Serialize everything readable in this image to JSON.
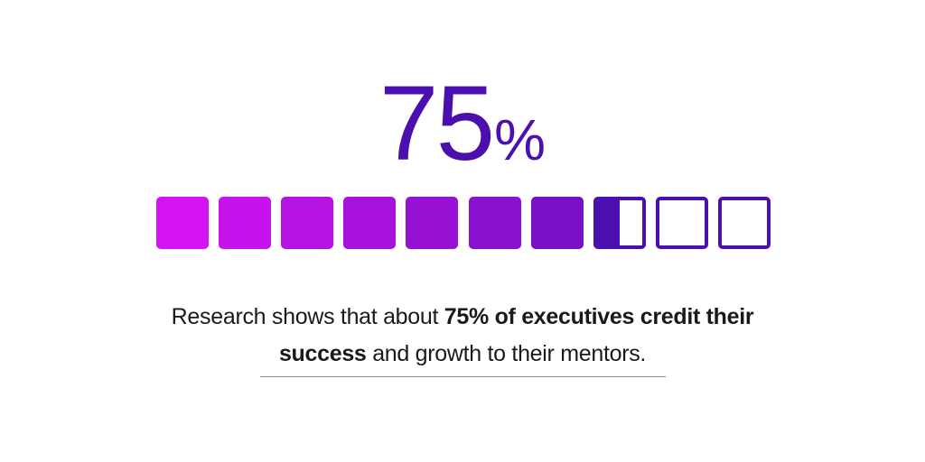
{
  "stat": {
    "number": "75",
    "symbol": "%",
    "value": 75
  },
  "meter": {
    "total_cells": 10,
    "filled_cells": 7.5,
    "gradient_start": "#d413f2",
    "gradient_end": "#4b0fb0",
    "outline_color": "#4b0fb0"
  },
  "caption": {
    "line1_regular": "Research shows that about ",
    "line1_bold": "75% of executives credit their",
    "line2_bold": "success",
    "line2_regular": " and growth to their mentors."
  },
  "colors": {
    "text": "#1a1a1a",
    "accent": "#4b0fb0",
    "divider": "#8a8a8a"
  }
}
